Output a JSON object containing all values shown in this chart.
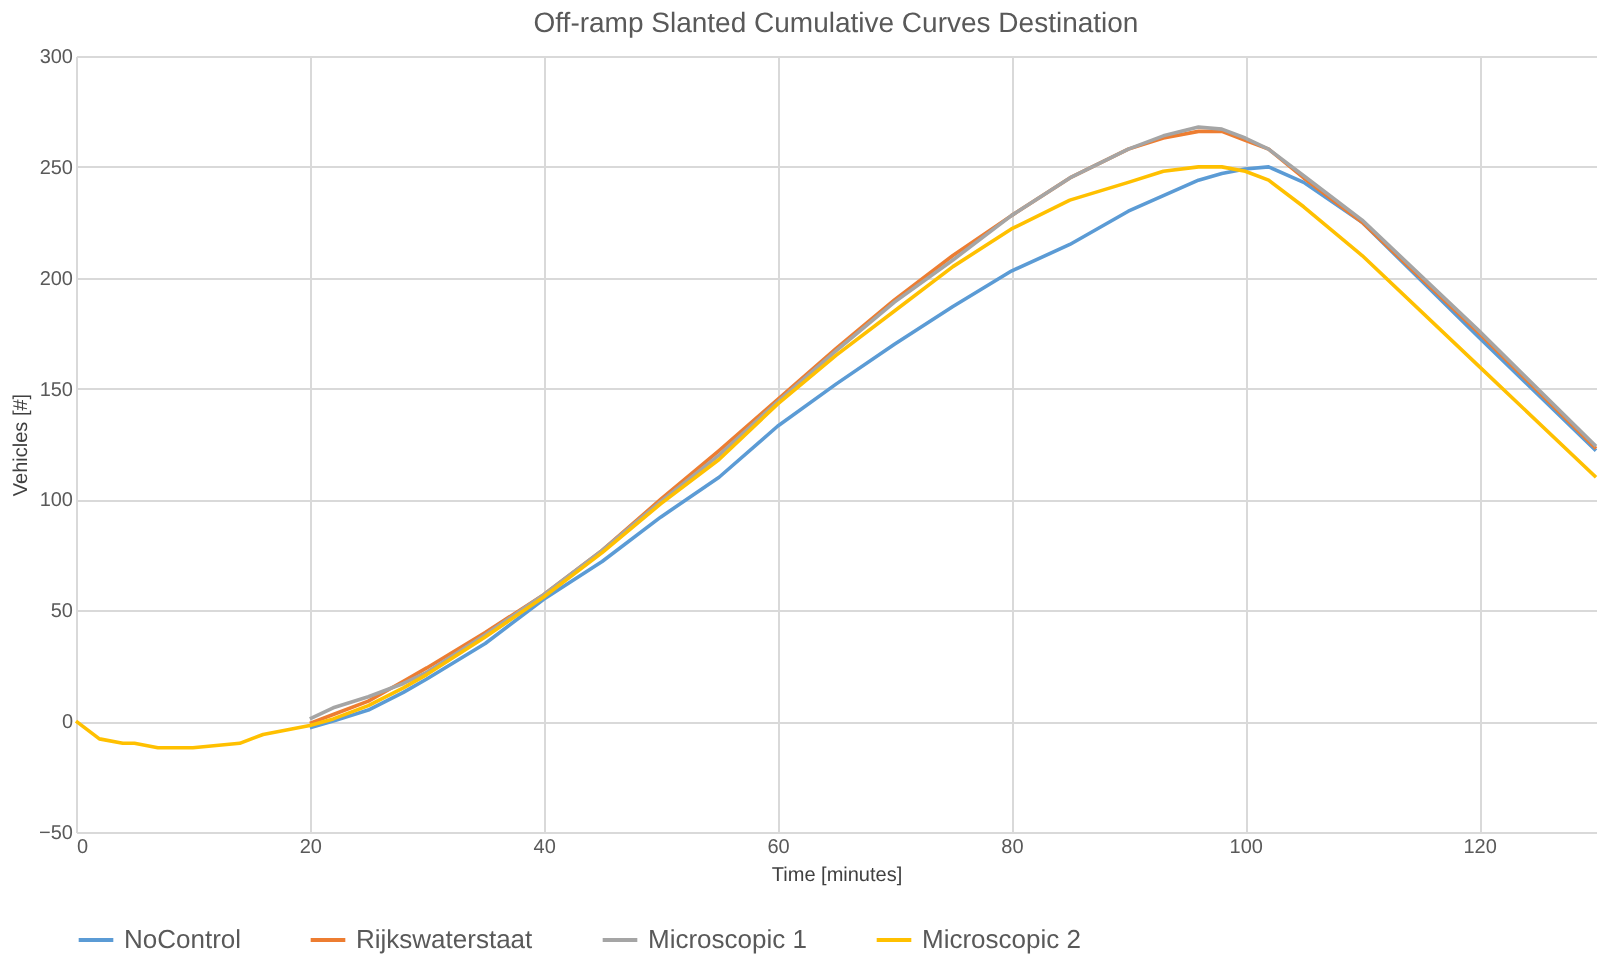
{
  "chart_data": {
    "type": "line",
    "title": "Off-ramp Slanted Cumulative Curves Destination",
    "xlabel": "Time [minutes]",
    "ylabel": "Vehicles [#]",
    "x": [
      0,
      2,
      4,
      5,
      7,
      10,
      14,
      16,
      18,
      20,
      22,
      25,
      28,
      30,
      35,
      40,
      45,
      50,
      55,
      60,
      65,
      70,
      75,
      80,
      85,
      90,
      93,
      96,
      98,
      100,
      102,
      105,
      110,
      120,
      130
    ],
    "xlim": [
      0,
      130
    ],
    "xticks": [
      0,
      20,
      40,
      60,
      80,
      100,
      120
    ],
    "ylim": [
      -50,
      300
    ],
    "yticks": [
      -50,
      0,
      50,
      100,
      150,
      200,
      250,
      300
    ],
    "grid": true,
    "legend": "bottom",
    "marker": "none",
    "line_style": "solid",
    "series": [
      {
        "name": "NoControl",
        "color": "#5b9bd5",
        "values": [
          null,
          null,
          null,
          null,
          null,
          null,
          null,
          null,
          null,
          -3,
          0,
          5,
          13,
          19,
          35,
          55,
          72,
          92,
          110,
          133,
          152,
          170,
          187,
          203,
          215,
          230,
          237,
          244,
          247,
          249,
          250,
          243,
          225,
          173,
          122
        ]
      },
      {
        "name": "Rijkswaterstaat",
        "color": "#ed7d31",
        "values": [
          null,
          null,
          null,
          null,
          null,
          null,
          null,
          null,
          null,
          -1,
          3,
          9,
          18,
          24,
          40,
          57,
          77,
          100,
          122,
          145,
          168,
          190,
          210,
          228,
          245,
          258,
          263,
          266,
          266,
          262,
          258,
          245,
          225,
          175,
          123
        ]
      },
      {
        "name": "Microscopic 1",
        "color": "#a5a5a5",
        "values": [
          null,
          null,
          null,
          null,
          null,
          null,
          null,
          null,
          null,
          1,
          6,
          11,
          17,
          22,
          39,
          57,
          77,
          99,
          120,
          144,
          167,
          189,
          208,
          228,
          245,
          258,
          264,
          268,
          267,
          263,
          258,
          246,
          226,
          176,
          124
        ]
      },
      {
        "name": "Microscopic 2",
        "color": "#ffc000",
        "values": [
          0,
          -8,
          -10,
          -10,
          -12,
          -12,
          -10,
          -6,
          -4,
          -2,
          1,
          7,
          15,
          21,
          38,
          56,
          76,
          98,
          118,
          143,
          165,
          185,
          205,
          222,
          235,
          243,
          248,
          250,
          250,
          248,
          244,
          232,
          210,
          160,
          110
        ]
      }
    ]
  }
}
